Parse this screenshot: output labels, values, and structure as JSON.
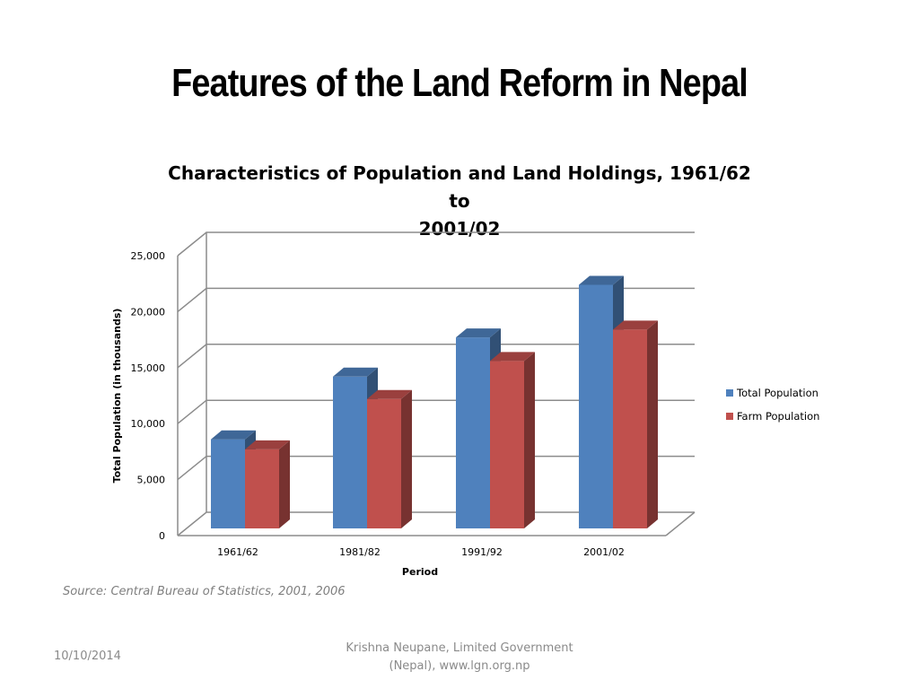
{
  "slide": {
    "title": "Features of the Land Reform in Nepal",
    "source": "Source: Central Bureau of Statistics, 2001, 2006",
    "date": "10/10/2014",
    "credit_line1": "Krishna Neupane, Limited Government",
    "credit_line2": "(Nepal), www.lgn.org.np"
  },
  "chart_data": {
    "type": "bar",
    "title": "Characteristics of Population and Land Holdings, 1961/62 to 2001/02",
    "title_line1": "Characteristics of Population and Land Holdings, 1961/62 to",
    "title_line2": "2001/02",
    "xlabel": "Period",
    "ylabel": "Total Population (in thousands)",
    "categories": [
      "1961/62",
      "1981/82",
      "1991/92",
      "2001/02"
    ],
    "series": [
      {
        "name": "Total Population",
        "values": [
          9400,
          15000,
          18500,
          23200
        ],
        "color": "#4f81bd"
      },
      {
        "name": "Farm Population",
        "values": [
          8500,
          13000,
          16400,
          19200
        ],
        "color": "#c0504d"
      }
    ],
    "ylim": [
      0,
      25000
    ],
    "yticks": [
      0,
      5000,
      10000,
      15000,
      20000,
      25000
    ],
    "ytick_labels": [
      "0",
      "5,000",
      "10,000",
      "15,000",
      "20,000",
      "25,000"
    ],
    "grid": true,
    "legend_position": "right",
    "style": "3d-clustered-column"
  }
}
